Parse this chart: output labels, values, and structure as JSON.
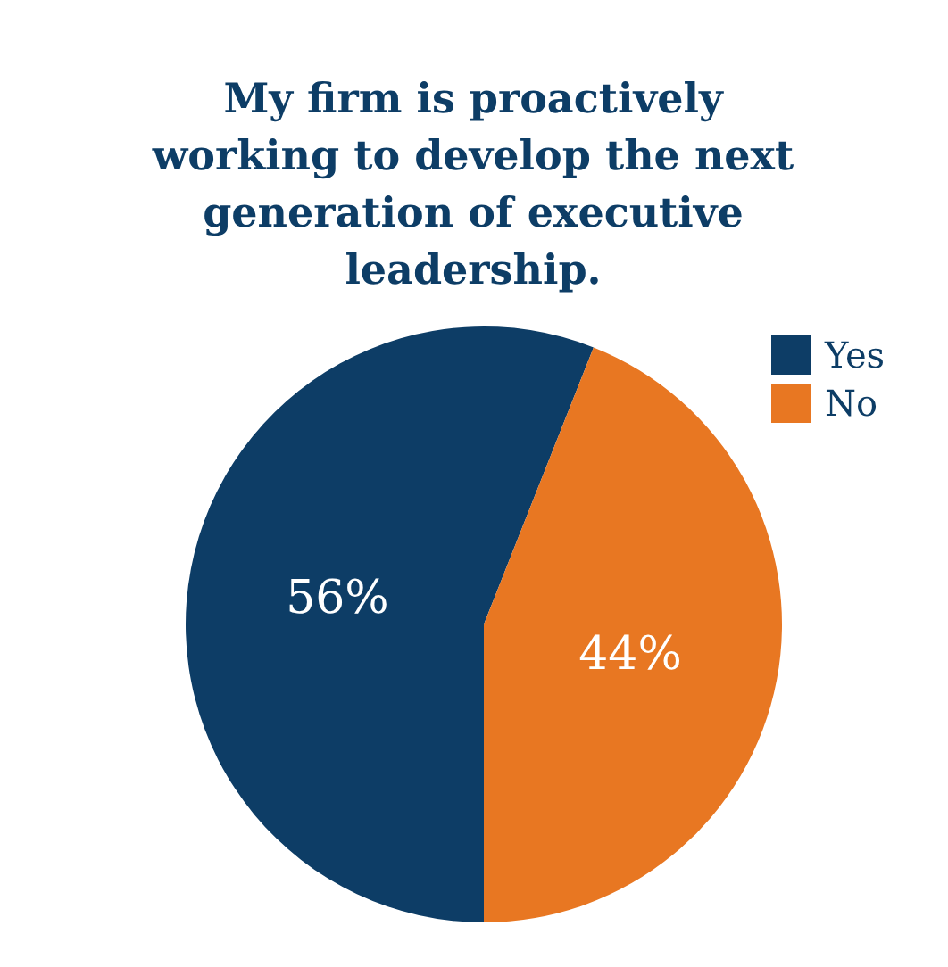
{
  "chart_data": {
    "type": "pie",
    "title": "My firm is proactively working to develop the next generation of executive leadership.",
    "categories": [
      "Yes",
      "No"
    ],
    "values": [
      56,
      44
    ],
    "colors": [
      "#0d3d66",
      "#e87722"
    ],
    "value_labels": [
      "56%",
      "44%"
    ],
    "legend": "top right"
  }
}
